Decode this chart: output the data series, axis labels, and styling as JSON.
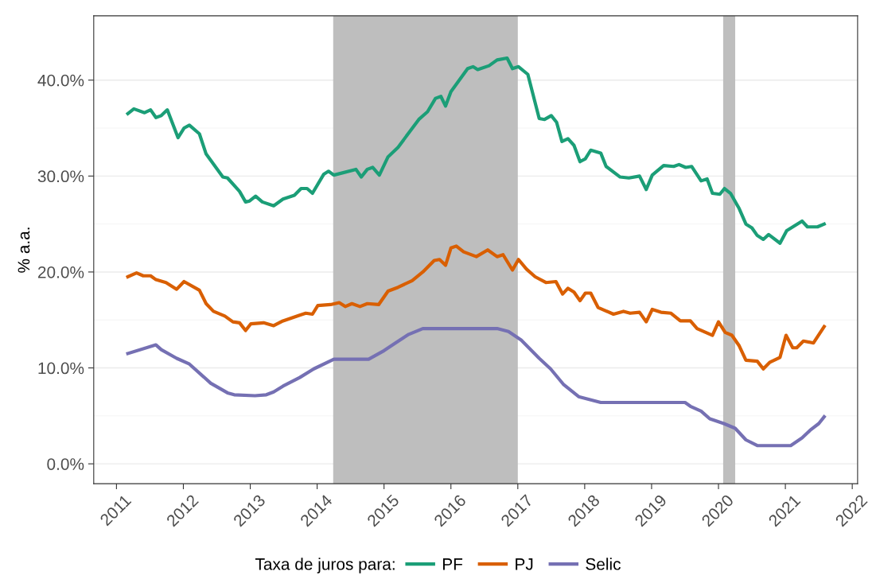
{
  "chart_data": {
    "type": "line",
    "ylabel": "% a.a.",
    "legend_title": "Taxa de juros para:",
    "legend": "bottom",
    "grid": "y",
    "line_style": "solid",
    "xlim": [
      2010.66,
      2022.08
    ],
    "xticks": [
      2011,
      2012,
      2013,
      2014,
      2015,
      2016,
      2017,
      2018,
      2019,
      2020,
      2021,
      2022
    ],
    "ylim": [
      -2.07,
      46.7
    ],
    "yticks": [
      {
        "value": 0,
        "label": "0.0%"
      },
      {
        "value": 10,
        "label": "10.0%"
      },
      {
        "value": 20,
        "label": "20.0%"
      },
      {
        "value": 30,
        "label": "30.0%"
      },
      {
        "value": 40,
        "label": "40.0%"
      }
    ],
    "bands": [
      {
        "axis": "x",
        "from": 2014.24,
        "to": 2017.0,
        "color": "#bebebe"
      },
      {
        "axis": "x",
        "from": 2020.07,
        "to": 2020.25,
        "color": "#bebebe"
      }
    ],
    "series": [
      {
        "name": "PF",
        "color": "#1b9e77",
        "x": [
          2011.17,
          2011.26,
          2011.42,
          2011.51,
          2011.59,
          2011.67,
          2011.76,
          2011.92,
          2012.01,
          2012.09,
          2012.24,
          2012.34,
          2012.59,
          2012.66,
          2012.84,
          2012.93,
          2012.99,
          2013.08,
          2013.18,
          2013.35,
          2013.49,
          2013.66,
          2013.76,
          2013.85,
          2013.93,
          2014.1,
          2014.17,
          2014.25,
          2014.58,
          2014.66,
          2014.75,
          2014.83,
          2014.93,
          2015.06,
          2015.21,
          2015.52,
          2015.65,
          2015.77,
          2015.85,
          2015.92,
          2016.0,
          2016.25,
          2016.33,
          2016.4,
          2016.57,
          2016.69,
          2016.84,
          2016.92,
          2017.01,
          2017.15,
          2017.32,
          2017.4,
          2017.5,
          2017.58,
          2017.66,
          2017.75,
          2017.84,
          2017.93,
          2018.01,
          2018.09,
          2018.24,
          2018.32,
          2018.53,
          2018.66,
          2018.82,
          2018.92,
          2019.01,
          2019.18,
          2019.33,
          2019.41,
          2019.51,
          2019.6,
          2019.74,
          2019.83,
          2019.91,
          2020.02,
          2020.09,
          2020.18,
          2020.31,
          2020.41,
          2020.5,
          2020.58,
          2020.67,
          2020.75,
          2020.92,
          2021.02,
          2021.25,
          2021.33,
          2021.48,
          2021.58
        ],
        "values": [
          36.5,
          37.0,
          36.6,
          36.9,
          36.1,
          36.3,
          36.9,
          34.0,
          35.0,
          35.3,
          34.4,
          32.3,
          29.9,
          29.8,
          28.4,
          27.3,
          27.4,
          27.9,
          27.3,
          26.9,
          27.6,
          28.0,
          28.7,
          28.7,
          28.2,
          30.2,
          30.5,
          30.1,
          30.7,
          29.9,
          30.7,
          30.9,
          30.1,
          32.0,
          33.0,
          35.9,
          36.7,
          38.1,
          38.3,
          37.3,
          38.8,
          41.2,
          41.4,
          41.1,
          41.5,
          42.1,
          42.3,
          41.2,
          41.4,
          40.6,
          36.0,
          35.9,
          36.3,
          35.6,
          33.6,
          33.9,
          33.2,
          31.5,
          31.8,
          32.7,
          32.4,
          31.0,
          29.9,
          29.8,
          30.0,
          28.6,
          30.1,
          31.1,
          31.0,
          31.2,
          30.9,
          31.0,
          29.5,
          29.7,
          28.2,
          28.1,
          28.7,
          28.2,
          26.6,
          25.0,
          24.6,
          23.8,
          23.4,
          23.9,
          23.0,
          24.3,
          25.3,
          24.7,
          24.7,
          25.0
        ]
      },
      {
        "name": "PJ",
        "color": "#d95f02",
        "x": [
          2011.17,
          2011.3,
          2011.4,
          2011.51,
          2011.59,
          2011.74,
          2011.9,
          2012.01,
          2012.24,
          2012.34,
          2012.45,
          2012.62,
          2012.74,
          2012.84,
          2012.93,
          2013.01,
          2013.2,
          2013.35,
          2013.49,
          2013.74,
          2013.83,
          2013.93,
          2014.01,
          2014.2,
          2014.33,
          2014.42,
          2014.52,
          2014.64,
          2014.75,
          2014.92,
          2015.06,
          2015.21,
          2015.42,
          2015.58,
          2015.75,
          2015.83,
          2015.92,
          2016.0,
          2016.08,
          2016.19,
          2016.38,
          2016.55,
          2016.69,
          2016.78,
          2016.92,
          2017.01,
          2017.13,
          2017.26,
          2017.42,
          2017.57,
          2017.67,
          2017.75,
          2017.84,
          2017.93,
          2018.01,
          2018.09,
          2018.2,
          2018.43,
          2018.58,
          2018.68,
          2018.82,
          2018.92,
          2019.01,
          2019.14,
          2019.29,
          2019.43,
          2019.58,
          2019.68,
          2019.91,
          2020.0,
          2020.1,
          2020.2,
          2020.31,
          2020.41,
          2020.58,
          2020.67,
          2020.77,
          2020.92,
          2021.01,
          2021.11,
          2021.17,
          2021.27,
          2021.42,
          2021.58
        ],
        "values": [
          19.5,
          19.9,
          19.6,
          19.6,
          19.2,
          18.9,
          18.2,
          19.0,
          18.1,
          16.7,
          15.9,
          15.4,
          14.8,
          14.7,
          13.9,
          14.6,
          14.7,
          14.4,
          14.9,
          15.5,
          15.7,
          15.6,
          16.5,
          16.6,
          16.8,
          16.4,
          16.7,
          16.4,
          16.7,
          16.6,
          18.0,
          18.4,
          19.1,
          20.0,
          21.2,
          21.3,
          20.7,
          22.5,
          22.7,
          22.1,
          21.6,
          22.3,
          21.6,
          21.8,
          20.2,
          21.3,
          20.3,
          19.5,
          18.9,
          19.0,
          17.7,
          18.3,
          17.9,
          17.0,
          17.8,
          17.8,
          16.3,
          15.6,
          15.9,
          15.7,
          15.8,
          14.8,
          16.1,
          15.8,
          15.7,
          14.9,
          14.9,
          14.1,
          13.4,
          14.8,
          13.7,
          13.4,
          12.3,
          10.8,
          10.7,
          9.9,
          10.6,
          11.1,
          13.4,
          12.1,
          12.1,
          12.8,
          12.6,
          14.3
        ]
      },
      {
        "name": "Selic",
        "color": "#7570b3",
        "x": [
          2011.17,
          2011.59,
          2011.67,
          2011.9,
          2012.09,
          2012.41,
          2012.66,
          2012.76,
          2013.07,
          2013.24,
          2013.35,
          2013.49,
          2013.74,
          2013.95,
          2014.25,
          2014.77,
          2015.0,
          2015.17,
          2015.37,
          2015.58,
          2016.69,
          2016.86,
          2017.05,
          2017.32,
          2017.49,
          2017.68,
          2017.91,
          2018.24,
          2019.5,
          2019.58,
          2019.74,
          2019.87,
          2020.08,
          2020.25,
          2020.41,
          2020.58,
          2021.08,
          2021.25,
          2021.37,
          2021.5,
          2021.58
        ],
        "values": [
          11.5,
          12.4,
          11.9,
          11.0,
          10.4,
          8.4,
          7.4,
          7.2,
          7.1,
          7.2,
          7.5,
          8.1,
          9.0,
          9.9,
          10.9,
          10.9,
          11.8,
          12.6,
          13.5,
          14.1,
          14.1,
          13.8,
          12.9,
          11.0,
          9.9,
          8.3,
          7.0,
          6.4,
          6.4,
          6.0,
          5.5,
          4.7,
          4.2,
          3.7,
          2.5,
          1.9,
          1.9,
          2.7,
          3.5,
          4.2,
          4.9
        ]
      }
    ]
  }
}
